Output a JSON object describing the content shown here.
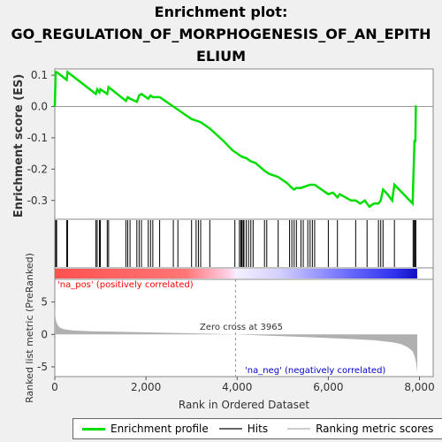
{
  "title_lines": [
    "Enrichment plot:",
    "GO_REGULATION_OF_MORPHOGENESIS_OF_AN_EPITH",
    "ELIUM"
  ],
  "colors": {
    "es_line": "#00dd00",
    "hits": "#000000",
    "metric_fill": "#b0b0b0",
    "pos_label": "#ff0000",
    "neg_label": "#0000cc",
    "zero_line": "#999999"
  },
  "legend": {
    "items": [
      {
        "label": "Enrichment profile",
        "color": "#00dd00"
      },
      {
        "label": "Hits",
        "color": "#666666"
      },
      {
        "label": "Ranking metric scores",
        "color": "#cccccc"
      }
    ]
  },
  "chart_data": {
    "type": "line",
    "xlabel": "Rank in Ordered Dataset",
    "xlim": [
      0,
      8300
    ],
    "xticks": [
      0,
      2000,
      4000,
      6000,
      8000
    ],
    "xtick_labels": [
      "0",
      "2,000",
      "4,000",
      "6,000",
      "8,000"
    ],
    "es_panel": {
      "ylabel": "Enrichment score (ES)",
      "ylim": [
        -0.36,
        0.12
      ],
      "yticks": [
        0.1,
        0.0,
        -0.1,
        -0.2,
        -0.3
      ],
      "ytick_labels": [
        "0.1",
        "0.0",
        "-0.1",
        "-0.2",
        "-0.3"
      ],
      "series": [
        {
          "name": "Enrichment profile",
          "x": [
            0,
            20,
            40,
            260,
            280,
            900,
            930,
            980,
            1000,
            1150,
            1180,
            1560,
            1600,
            1650,
            1800,
            1850,
            1900,
            2050,
            2100,
            2150,
            2300,
            2600,
            2700,
            3000,
            3100,
            3200,
            3400,
            3700,
            3900,
            4050,
            4100,
            4200,
            4300,
            4400,
            4600,
            4700,
            4900,
            5100,
            5200,
            5250,
            5300,
            5400,
            5500,
            5600,
            5700,
            6000,
            6100,
            6200,
            6250,
            6500,
            6600,
            6700,
            6800,
            6900,
            7000,
            7100,
            7150,
            7200,
            7300,
            7400,
            7450,
            7850,
            7870,
            7890,
            7910,
            7920,
            7940
          ],
          "y": [
            0.0,
            0.11,
            0.11,
            0.085,
            0.11,
            0.04,
            0.055,
            0.045,
            0.055,
            0.04,
            0.062,
            0.018,
            0.03,
            0.025,
            0.015,
            0.035,
            0.04,
            0.025,
            0.035,
            0.03,
            0.03,
            0.0,
            -0.01,
            -0.04,
            -0.045,
            -0.05,
            -0.07,
            -0.11,
            -0.14,
            -0.155,
            -0.16,
            -0.165,
            -0.175,
            -0.18,
            -0.205,
            -0.215,
            -0.225,
            -0.245,
            -0.26,
            -0.265,
            -0.26,
            -0.26,
            -0.255,
            -0.25,
            -0.25,
            -0.28,
            -0.275,
            -0.29,
            -0.28,
            -0.3,
            -0.3,
            -0.31,
            -0.3,
            -0.32,
            -0.31,
            -0.31,
            -0.3,
            -0.265,
            -0.28,
            -0.3,
            -0.25,
            -0.31,
            -0.21,
            -0.11,
            -0.11,
            0.0,
            0.0
          ]
        }
      ]
    },
    "hits_x": [
      20,
      40,
      260,
      280,
      900,
      930,
      980,
      1000,
      1150,
      1180,
      1560,
      1600,
      1650,
      1800,
      1850,
      1900,
      2050,
      2100,
      2150,
      2300,
      2600,
      2700,
      3000,
      3100,
      3150,
      3200,
      3400,
      3950,
      4050,
      4080,
      4100,
      4130,
      4150,
      4200,
      4250,
      4300,
      4350,
      4600,
      4650,
      4900,
      5150,
      5200,
      5250,
      5300,
      5400,
      5450,
      5550,
      5600,
      5650,
      5700,
      6000,
      6200,
      6600,
      6850,
      7100,
      7150,
      7200,
      7450,
      7860,
      7880,
      7900,
      7920
    ],
    "metric_panel": {
      "ylabel": "Ranked list metric (PreRanked)",
      "ylim": [
        -6.5,
        8.5
      ],
      "yticks": [
        5,
        0,
        -5
      ],
      "ytick_labels": [
        "5",
        "0",
        "-5"
      ],
      "zero_cross_text": "Zero cross at 3965",
      "zero_cross_x": 3965,
      "pos_label": "'na_pos' (positively correlated)",
      "neg_label": "'na_neg' (negatively correlated)",
      "x": [
        0,
        10,
        30,
        60,
        100,
        200,
        400,
        800,
        1500,
        2500,
        3500,
        3965,
        4500,
        5500,
        6500,
        7000,
        7400,
        7600,
        7750,
        7850,
        7900,
        7930,
        7950
      ],
      "y": [
        4.6,
        3.0,
        2.0,
        1.5,
        1.1,
        0.8,
        0.6,
        0.5,
        0.4,
        0.25,
        0.1,
        0.0,
        -0.15,
        -0.4,
        -0.7,
        -0.9,
        -1.2,
        -1.5,
        -2.0,
        -2.6,
        -3.5,
        -4.5,
        -5.8
      ]
    }
  }
}
